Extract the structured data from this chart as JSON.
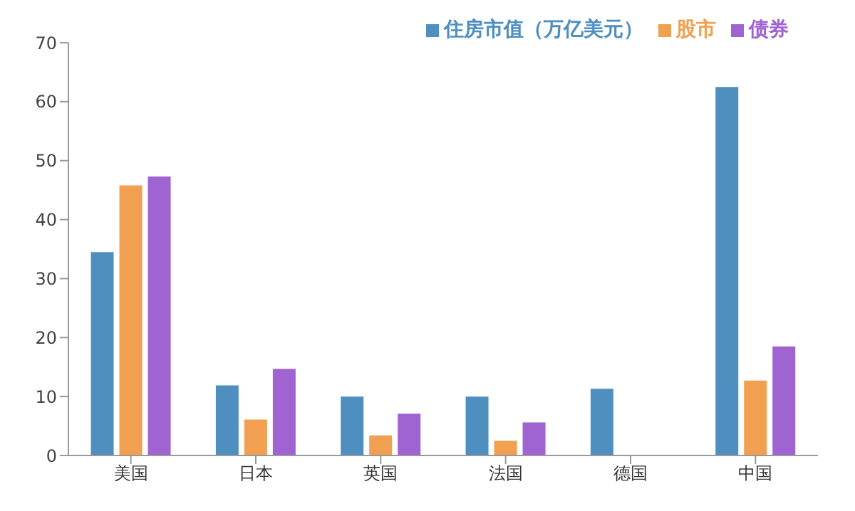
{
  "chart_data": {
    "type": "bar",
    "categories": [
      "美国",
      "日本",
      "英国",
      "法国",
      "德国",
      "中国"
    ],
    "series": [
      {
        "name": "住房市值（万亿美元）",
        "color": "#4f8fc0",
        "values": [
          34.5,
          11.9,
          10.0,
          10.0,
          11.3,
          62.5
        ]
      },
      {
        "name": "股市",
        "color": "#f0a050",
        "values": [
          45.8,
          6.1,
          3.4,
          2.5,
          null,
          12.7
        ]
      },
      {
        "name": "债券",
        "color": "#a064d2",
        "values": [
          47.3,
          14.7,
          7.1,
          5.6,
          null,
          18.5
        ]
      }
    ],
    "ylim": [
      0,
      70
    ],
    "yticks": [
      0,
      10,
      20,
      30,
      40,
      50,
      60,
      70
    ],
    "grid": false,
    "legend": "top"
  }
}
